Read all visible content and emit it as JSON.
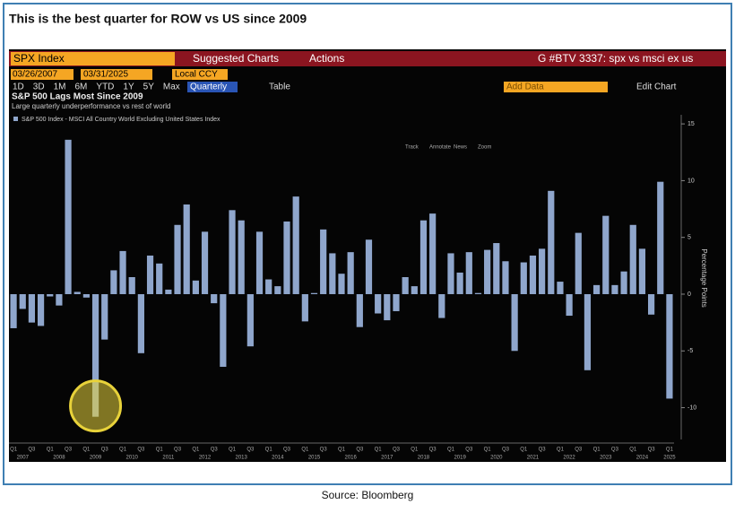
{
  "heading": "This is the best quarter for ROW vs US since 2009",
  "source": "Source: Bloomberg",
  "toolbar": {
    "ticker": "SPX Index",
    "suggested": "Suggested Charts",
    "actions": "Actions",
    "chart_id": "G #BTV 3337: spx vs msci ex us",
    "start_date": "03/26/2007",
    "end_date": "03/31/2025",
    "currency": "Local CCY",
    "periods": [
      "1D",
      "3D",
      "1M",
      "6M",
      "YTD",
      "1Y",
      "5Y",
      "Max"
    ],
    "frequency": "Quarterly",
    "table": "Table",
    "add_data": "Add Data",
    "edit_chart": "Edit Chart",
    "tools": [
      "Track",
      "Annotate",
      "News",
      "Zoom"
    ]
  },
  "chart_data": {
    "type": "bar",
    "title": "S&P 500 Lags Most Since 2009",
    "subtitle": "Large quarterly underperformance vs rest of world",
    "y_label": "Percentage Points",
    "categories": [
      "Q1",
      null,
      "Q3",
      null,
      "Q1",
      null,
      "Q3",
      null,
      "Q1",
      null,
      "Q3",
      null,
      "Q1",
      null,
      "Q3",
      null,
      "Q1",
      null,
      "Q3",
      null,
      "Q1",
      null,
      "Q3",
      null,
      "Q1",
      null,
      "Q3",
      null,
      "Q1",
      null,
      "Q3",
      null,
      "Q1",
      null,
      "Q3",
      null,
      "Q1",
      null,
      "Q3",
      null,
      "Q1",
      null,
      "Q3",
      null,
      "Q1",
      null,
      "Q3",
      null,
      "Q1",
      null,
      "Q3",
      null,
      "Q1",
      null,
      "Q3",
      null,
      "Q1",
      null,
      "Q3",
      null,
      "Q1",
      null,
      "Q3",
      null,
      "Q1",
      null,
      "Q3",
      null,
      "Q1",
      null,
      "Q3",
      null,
      "Q1"
    ],
    "years": [
      "2007",
      "2008",
      "2009",
      "2010",
      "2011",
      "2012",
      "2013",
      "2014",
      "2015",
      "2016",
      "2017",
      "2018",
      "2019",
      "2020",
      "2021",
      "2022",
      "2023",
      "2024",
      "2025"
    ],
    "series": [
      {
        "name": "S&P 500 Index - MSCI All Country World Excluding United States Index",
        "color": "#8fa6cc",
        "values": [
          -3,
          -1.3,
          -2.5,
          -2.8,
          -0.2,
          -1,
          13.6,
          0.2,
          -0.3,
          -10.8,
          -4,
          2.1,
          3.8,
          1.5,
          -5.2,
          3.4,
          2.7,
          0.4,
          6.1,
          7.9,
          1.2,
          5.5,
          -0.8,
          -6.4,
          7.4,
          6.5,
          -4.6,
          5.5,
          1.3,
          0.7,
          6.4,
          8.6,
          -2.4,
          0.1,
          5.7,
          3.6,
          1.8,
          3.7,
          -2.9,
          4.8,
          -1.7,
          -2.3,
          -1.5,
          1.5,
          0.7,
          6.5,
          7.1,
          -2.1,
          3.6,
          1.9,
          3.7,
          0.1,
          3.9,
          4.5,
          2.9,
          -5,
          2.8,
          3.4,
          4,
          9.1,
          1.1,
          -1.9,
          5.4,
          -6.7,
          0.8,
          6.9,
          0.8,
          2,
          6.1,
          4,
          -1.8,
          9.9,
          -9.2
        ]
      }
    ],
    "ylim": [
      -12.8,
      15.8
    ],
    "yticks": [
      -10,
      -5,
      0,
      5,
      10,
      15
    ],
    "grid": false,
    "highlight_index": 9
  }
}
